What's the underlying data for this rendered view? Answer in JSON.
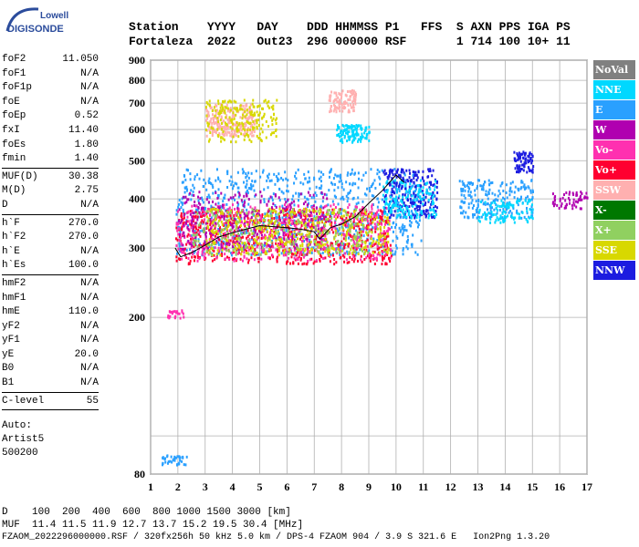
{
  "logo": {
    "line1": "Lowell",
    "line2": "DIGISONDE"
  },
  "header": {
    "labels": [
      "Station",
      "YYYY",
      "DAY",
      "DDD",
      "HHMMSS",
      "P1",
      "FFS",
      "S",
      "AXN",
      "PPS",
      "IGA",
      "PS"
    ],
    "values": [
      "Fortaleza",
      "2022",
      "Out23",
      "296",
      "000000",
      "RSF",
      "",
      "1",
      "714",
      "100",
      "10+",
      "11"
    ]
  },
  "params": [
    {
      "name": "foF2",
      "value": "11.050"
    },
    {
      "name": "foF1",
      "value": "N/A"
    },
    {
      "name": "foF1p",
      "value": "N/A"
    },
    {
      "name": "foE",
      "value": "N/A"
    },
    {
      "name": "foEp",
      "value": "0.52"
    },
    {
      "name": "fxI",
      "value": "11.40"
    },
    {
      "name": "foEs",
      "value": "1.80"
    },
    {
      "name": "fmin",
      "value": "1.40"
    },
    {
      "sep": true
    },
    {
      "name": "MUF(D)",
      "value": "30.38"
    },
    {
      "name": "M(D)",
      "value": "2.75"
    },
    {
      "name": "D",
      "value": "N/A"
    },
    {
      "sep": true
    },
    {
      "name": "h`F",
      "value": "270.0"
    },
    {
      "name": "h`F2",
      "value": "270.0"
    },
    {
      "name": "h`E",
      "value": "N/A"
    },
    {
      "name": "h`Es",
      "value": "100.0"
    },
    {
      "sep": true
    },
    {
      "name": "hmF2",
      "value": "N/A"
    },
    {
      "name": "hmF1",
      "value": "N/A"
    },
    {
      "name": "hmE",
      "value": "110.0"
    },
    {
      "name": "yF2",
      "value": "N/A"
    },
    {
      "name": "yF1",
      "value": "N/A"
    },
    {
      "name": "yE",
      "value": "20.0"
    },
    {
      "name": "B0",
      "value": "N/A"
    },
    {
      "name": "B1",
      "value": "N/A"
    },
    {
      "sep": true
    },
    {
      "name": "C-level",
      "value": "55"
    }
  ],
  "auto": [
    "Auto:",
    "Artist5",
    "500200"
  ],
  "legend": [
    {
      "label": "NoVal",
      "color": "#808080"
    },
    {
      "label": "NNE",
      "color": "#00d8ff"
    },
    {
      "label": "E",
      "color": "#2aa0ff"
    },
    {
      "label": "W",
      "color": "#b000b0"
    },
    {
      "label": "Vo-",
      "color": "#ff30b0"
    },
    {
      "label": "Vo+",
      "color": "#ff0030"
    },
    {
      "label": "SSW",
      "color": "#ffb0b0"
    },
    {
      "label": "X-",
      "color": "#007800"
    },
    {
      "label": "X+",
      "color": "#90d060"
    },
    {
      "label": "SSE",
      "color": "#d8d800"
    },
    {
      "label": "NNW",
      "color": "#1c1ce0"
    }
  ],
  "footer": {
    "line1": "D    100  200  400  600  800 1000 1500 3000 [km]",
    "line2": "MUF  11.4 11.5 11.9 12.7 13.7 15.2 19.5 30.4 [MHz]",
    "line3": "FZAOM_2022296000000.RSF / 320fx256h 50 kHz 5.0 km / DPS-4 FZAOM 904 / 3.9 S 321.6 E   Ion2Png 1.3.20"
  },
  "chart_data": {
    "type": "scatter",
    "xlim": [
      1,
      17
    ],
    "ylim": [
      80,
      900
    ],
    "yscale": "log",
    "xticks": [
      1,
      2,
      3,
      4,
      5,
      6,
      7,
      8,
      9,
      10,
      11,
      12,
      13,
      14,
      15,
      16,
      17
    ],
    "yticks": [
      80,
      100,
      200,
      300,
      400,
      500,
      600,
      700,
      800,
      900
    ],
    "ytick_labels": [
      "80",
      "",
      "200",
      "300",
      "400",
      "500",
      "600",
      "700",
      "800",
      "900"
    ],
    "grid": true,
    "trace": {
      "x": [
        1.9,
        2.1,
        2.5,
        3.0,
        3.5,
        4.0,
        4.5,
        5.0,
        5.5,
        6.0,
        6.5,
        7.0,
        7.2,
        7.6,
        8.0,
        8.5,
        9.0,
        9.5,
        10.0,
        10.3
      ],
      "y": [
        300,
        285,
        292,
        305,
        320,
        328,
        335,
        342,
        340,
        338,
        335,
        330,
        316,
        338,
        345,
        360,
        390,
        420,
        460,
        440
      ]
    },
    "clusters": [
      {
        "name": "E",
        "color": "#2aa0ff",
        "x": [
          1.9,
          10.9
        ],
        "y": [
          290,
          480
        ],
        "n": 900
      },
      {
        "name": "Vo+",
        "color": "#ff0030",
        "x": [
          1.9,
          9.8
        ],
        "y": [
          275,
          380
        ],
        "n": 700
      },
      {
        "name": "Vo-",
        "color": "#ff30b0",
        "x": [
          1.9,
          9.8
        ],
        "y": [
          280,
          390
        ],
        "n": 500
      },
      {
        "name": "W",
        "color": "#b000b0",
        "x": [
          2.0,
          7.5
        ],
        "y": [
          300,
          420
        ],
        "n": 300
      },
      {
        "name": "SSE",
        "color": "#d8d800",
        "x": [
          3.0,
          9.8
        ],
        "y": [
          290,
          380
        ],
        "n": 400
      },
      {
        "name": "X+",
        "color": "#90d060",
        "x": [
          2.5,
          9.0
        ],
        "y": [
          290,
          380
        ],
        "n": 200
      },
      {
        "name": "NNW",
        "color": "#1c1ce0",
        "x": [
          9.5,
          11.5
        ],
        "y": [
          360,
          480
        ],
        "n": 250
      },
      {
        "name": "NNE",
        "color": "#00d8ff",
        "x": [
          9.5,
          11.5
        ],
        "y": [
          360,
          450
        ],
        "n": 150
      },
      {
        "name": "SSW",
        "color": "#ffb0b0",
        "x": [
          3.0,
          4.8
        ],
        "y": [
          580,
          700
        ],
        "n": 250
      },
      {
        "name": "SSE",
        "color": "#d8d800",
        "x": [
          3.0,
          5.6
        ],
        "y": [
          560,
          720
        ],
        "n": 200
      },
      {
        "name": "SSW",
        "color": "#ffb0b0",
        "x": [
          7.5,
          8.5
        ],
        "y": [
          670,
          760
        ],
        "n": 100
      },
      {
        "name": "NNE",
        "color": "#00d8ff",
        "x": [
          7.8,
          9.0
        ],
        "y": [
          560,
          620
        ],
        "n": 120
      },
      {
        "name": "E",
        "color": "#2aa0ff",
        "x": [
          12.3,
          15.0
        ],
        "y": [
          360,
          450
        ],
        "n": 220
      },
      {
        "name": "NNE",
        "color": "#00d8ff",
        "x": [
          13.0,
          15.0
        ],
        "y": [
          350,
          400
        ],
        "n": 100
      },
      {
        "name": "NNW",
        "color": "#1c1ce0",
        "x": [
          14.3,
          15.0
        ],
        "y": [
          470,
          530
        ],
        "n": 80
      },
      {
        "name": "W",
        "color": "#b000b0",
        "x": [
          15.7,
          17.0
        ],
        "y": [
          380,
          420
        ],
        "n": 60
      },
      {
        "name": "Vo-",
        "color": "#ff30b0",
        "x": [
          1.6,
          2.2
        ],
        "y": [
          200,
          210
        ],
        "n": 25
      },
      {
        "name": "E",
        "color": "#2aa0ff",
        "x": [
          1.4,
          2.3
        ],
        "y": [
          85,
          90
        ],
        "n": 40
      }
    ]
  }
}
